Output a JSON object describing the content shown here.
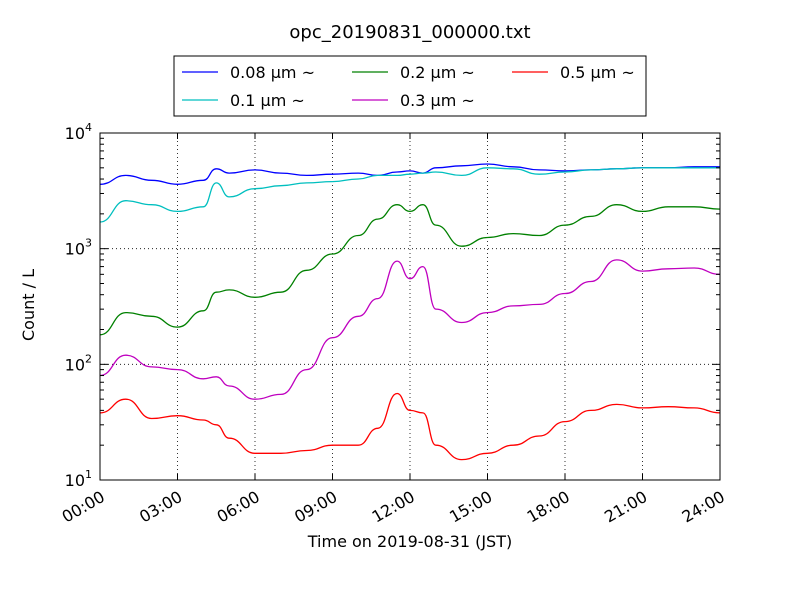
{
  "chart_data": {
    "type": "line",
    "title": "opc_20190831_000000.txt",
    "xlabel": "Time on 2019-08-31 (JST)",
    "ylabel": "Count / L",
    "yscale": "log",
    "xlim": [
      "00:00",
      "24:00"
    ],
    "ylim": [
      10,
      10000
    ],
    "grid": true,
    "legend_position": "top",
    "x_ticks": [
      "00:00",
      "03:00",
      "06:00",
      "09:00",
      "12:00",
      "15:00",
      "18:00",
      "21:00",
      "24:00"
    ],
    "y_ticks": [
      {
        "value": 10,
        "base": "10",
        "exp": "1"
      },
      {
        "value": 100,
        "base": "10",
        "exp": "2"
      },
      {
        "value": 1000,
        "base": "10",
        "exp": "3"
      },
      {
        "value": 10000,
        "base": "10",
        "exp": "4"
      }
    ],
    "x": [
      "00:00",
      "01:00",
      "02:00",
      "03:00",
      "04:00",
      "04:30",
      "05:00",
      "06:00",
      "07:00",
      "08:00",
      "09:00",
      "10:00",
      "10:45",
      "11:30",
      "12:00",
      "12:30",
      "13:00",
      "14:00",
      "15:00",
      "16:00",
      "17:00",
      "18:00",
      "19:00",
      "20:00",
      "21:00",
      "22:00",
      "23:00",
      "24:00"
    ],
    "series": [
      {
        "name": "0.08 μm ~",
        "color": "#0000ff",
        "values": [
          3600,
          4300,
          3900,
          3600,
          3900,
          4900,
          4500,
          4800,
          4500,
          4300,
          4400,
          4500,
          4300,
          4600,
          4700,
          4500,
          5000,
          5200,
          5400,
          5100,
          4800,
          4700,
          4800,
          4900,
          5000,
          5000,
          5100,
          5100
        ]
      },
      {
        "name": "0.1 μm ~",
        "color": "#00bfbf",
        "values": [
          1700,
          2600,
          2400,
          2100,
          2300,
          3700,
          2800,
          3300,
          3500,
          3700,
          3800,
          4000,
          4300,
          4300,
          4400,
          4500,
          4600,
          4300,
          5000,
          4900,
          4400,
          4600,
          4800,
          4900,
          5000,
          5000,
          5000,
          5000
        ]
      },
      {
        "name": "0.2 μm ~",
        "color": "#008000",
        "values": [
          180,
          280,
          260,
          210,
          290,
          420,
          440,
          380,
          420,
          650,
          900,
          1300,
          1800,
          2400,
          2100,
          2400,
          1600,
          1050,
          1250,
          1350,
          1300,
          1600,
          1900,
          2400,
          2100,
          2300,
          2300,
          2200
        ]
      },
      {
        "name": "0.3 μm ~",
        "color": "#bf00bf",
        "values": [
          80,
          120,
          95,
          90,
          75,
          78,
          65,
          50,
          55,
          90,
          170,
          260,
          370,
          780,
          550,
          700,
          300,
          230,
          280,
          320,
          330,
          410,
          520,
          800,
          640,
          670,
          680,
          600
        ]
      },
      {
        "name": "0.5 μm ~",
        "color": "#ff0000",
        "values": [
          38,
          50,
          34,
          36,
          33,
          30,
          23,
          17,
          17,
          18,
          20,
          20,
          28,
          56,
          40,
          38,
          20,
          15,
          17,
          20,
          24,
          32,
          40,
          45,
          42,
          43,
          42,
          38
        ]
      }
    ]
  }
}
